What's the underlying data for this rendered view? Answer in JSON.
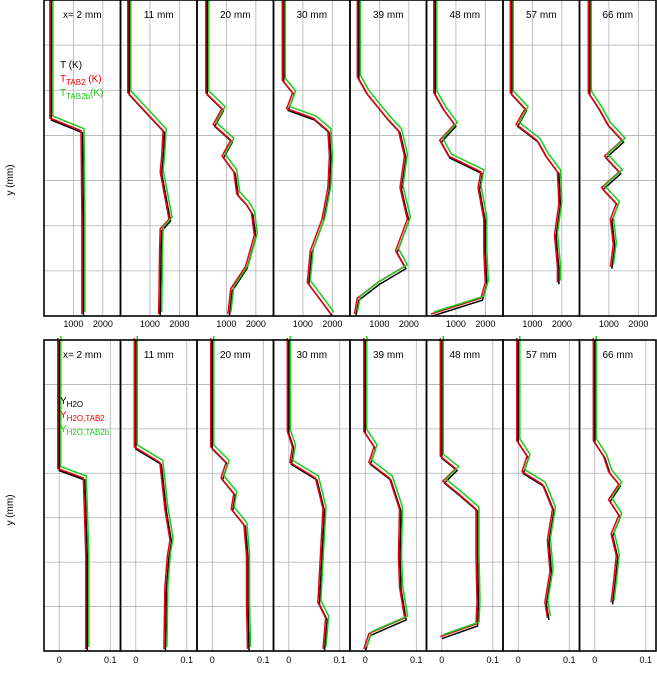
{
  "figure": {
    "ylabel": "y (mm)",
    "stations": [
      "x= 2 mm",
      "11 mm",
      "20 mm",
      "30 mm",
      "39 mm",
      "48 mm",
      "57 mm",
      "66 mm"
    ]
  },
  "chart_data": [
    {
      "type": "line",
      "title": "",
      "ylabel": "y (mm)",
      "xlabel": "",
      "xlim": [
        0,
        2600
      ],
      "xticks": [
        1000,
        2000
      ],
      "xtick_labels": [
        "1000",
        "2000"
      ],
      "grid": true,
      "legend": {
        "placement": "top-left (first panel)",
        "entries": [
          {
            "main": "T",
            "sub": "",
            "unit": " (K)",
            "color": "#000000"
          },
          {
            "main": "T",
            "sub": "TAB2",
            "unit": " (K)",
            "color": "#e8000b"
          },
          {
            "main": "T",
            "sub": "TAB2b",
            "unit": "(K)",
            "color": "#1ec81e"
          }
        ]
      },
      "series_names": [
        "T",
        "T TAB2",
        "T TAB2b"
      ],
      "series_colors": [
        "#000000",
        "#e8000b",
        "#1ec81e"
      ],
      "panels": [
        {
          "label": "x= 2 mm",
          "profile": [
            [
              0,
              250
            ],
            [
              0.38,
              250
            ],
            [
              0.42,
              1310
            ],
            [
              0.7,
              1340
            ],
            [
              1.0,
              1340
            ]
          ]
        },
        {
          "label": "11 mm",
          "profile": [
            [
              0,
              300
            ],
            [
              0.3,
              300
            ],
            [
              0.35,
              800
            ],
            [
              0.42,
              1500
            ],
            [
              0.5,
              1450
            ],
            [
              0.55,
              1400
            ],
            [
              0.7,
              1700
            ],
            [
              0.73,
              1400
            ],
            [
              0.8,
              1380
            ],
            [
              1.0,
              1350
            ]
          ]
        },
        {
          "label": "20 mm",
          "profile": [
            [
              0,
              350
            ],
            [
              0.3,
              350
            ],
            [
              0.35,
              900
            ],
            [
              0.4,
              600
            ],
            [
              0.45,
              1200
            ],
            [
              0.5,
              900
            ],
            [
              0.55,
              1300
            ],
            [
              0.62,
              1400
            ],
            [
              0.65,
              1700
            ],
            [
              0.68,
              1900
            ],
            [
              0.75,
              2000
            ],
            [
              0.85,
              1700
            ],
            [
              0.92,
              1200
            ],
            [
              1.0,
              1100
            ]
          ]
        },
        {
          "label": "30 mm",
          "profile": [
            [
              0,
              350
            ],
            [
              0.26,
              350
            ],
            [
              0.3,
              700
            ],
            [
              0.35,
              500
            ],
            [
              0.38,
              1400
            ],
            [
              0.42,
              1900
            ],
            [
              0.5,
              1950
            ],
            [
              0.6,
              1900
            ],
            [
              0.7,
              1700
            ],
            [
              0.8,
              1300
            ],
            [
              0.9,
              1200
            ],
            [
              0.95,
              1600
            ],
            [
              1.0,
              2000
            ]
          ]
        },
        {
          "label": "39 mm",
          "profile": [
            [
              0,
              300
            ],
            [
              0.25,
              300
            ],
            [
              0.3,
              600
            ],
            [
              0.38,
              1300
            ],
            [
              0.42,
              1700
            ],
            [
              0.5,
              1900
            ],
            [
              0.6,
              1750
            ],
            [
              0.7,
              2000
            ],
            [
              0.8,
              1600
            ],
            [
              0.85,
              1900
            ],
            [
              0.9,
              1000
            ],
            [
              0.95,
              300
            ],
            [
              1.0,
              200
            ]
          ]
        },
        {
          "label": "48 mm",
          "profile": [
            [
              0,
              300
            ],
            [
              0.3,
              300
            ],
            [
              0.35,
              600
            ],
            [
              0.4,
              1000
            ],
            [
              0.45,
              500
            ],
            [
              0.5,
              800
            ],
            [
              0.55,
              1900
            ],
            [
              0.6,
              1800
            ],
            [
              0.7,
              2000
            ],
            [
              0.8,
              2000
            ],
            [
              0.9,
              2050
            ],
            [
              0.95,
              1900
            ],
            [
              1.0,
              200
            ]
          ]
        },
        {
          "label": "57 mm",
          "profile": [
            [
              0,
              300
            ],
            [
              0.3,
              300
            ],
            [
              0.35,
              800
            ],
            [
              0.4,
              500
            ],
            [
              0.45,
              1200
            ],
            [
              0.5,
              1500
            ],
            [
              0.55,
              1900
            ],
            [
              0.65,
              1950
            ],
            [
              0.75,
              1800
            ],
            [
              0.85,
              1900
            ],
            [
              0.9,
              1900
            ]
          ]
        },
        {
          "label": "66 mm",
          "profile": [
            [
              0,
              350
            ],
            [
              0.3,
              350
            ],
            [
              0.35,
              700
            ],
            [
              0.4,
              1000
            ],
            [
              0.45,
              1500
            ],
            [
              0.5,
              900
            ],
            [
              0.55,
              1400
            ],
            [
              0.6,
              800
            ],
            [
              0.65,
              1300
            ],
            [
              0.7,
              1100
            ],
            [
              0.78,
              1200
            ],
            [
              0.85,
              1100
            ]
          ]
        }
      ]
    },
    {
      "type": "line",
      "title": "",
      "ylabel": "y (mm)",
      "xlabel": "",
      "xlim": [
        -0.03,
        0.12
      ],
      "xticks": [
        0,
        0.1
      ],
      "xtick_labels": [
        "0",
        "0.1"
      ],
      "grid": true,
      "legend": {
        "placement": "top-left (first panel)",
        "entries": [
          {
            "main": "Y",
            "sub": "H2O",
            "unit": "",
            "color": "#000000"
          },
          {
            "main": "Y",
            "sub": "H2O,TAB2",
            "unit": "",
            "color": "#e8000b"
          },
          {
            "main": "Y",
            "sub": "H2O,TAB2b",
            "unit": "",
            "color": "#1ec81e"
          }
        ]
      },
      "series_names": [
        "Y H2O",
        "Y H2O,TAB2",
        "Y H2O,TAB2b"
      ],
      "series_colors": [
        "#000000",
        "#e8000b",
        "#1ec81e"
      ],
      "panels": [
        {
          "label": "x= 2 mm",
          "profile": [
            [
              0,
              0
            ],
            [
              0.42,
              0
            ],
            [
              0.45,
              0.05
            ],
            [
              0.7,
              0.055
            ],
            [
              1.0,
              0.055
            ]
          ]
        },
        {
          "label": "11 mm",
          "profile": [
            [
              0,
              0
            ],
            [
              0.35,
              0
            ],
            [
              0.4,
              0.05
            ],
            [
              0.55,
              0.06
            ],
            [
              0.65,
              0.07
            ],
            [
              0.7,
              0.065
            ],
            [
              0.8,
              0.06
            ],
            [
              1.0,
              0.058
            ]
          ]
        },
        {
          "label": "20 mm",
          "profile": [
            [
              0,
              0
            ],
            [
              0.35,
              0
            ],
            [
              0.4,
              0.03
            ],
            [
              0.45,
              0.02
            ],
            [
              0.5,
              0.045
            ],
            [
              0.55,
              0.04
            ],
            [
              0.6,
              0.065
            ],
            [
              0.7,
              0.07
            ],
            [
              0.85,
              0.07
            ],
            [
              1.0,
              0.072
            ]
          ]
        },
        {
          "label": "30 mm",
          "profile": [
            [
              0,
              0
            ],
            [
              0.3,
              0
            ],
            [
              0.35,
              0.01
            ],
            [
              0.4,
              0.005
            ],
            [
              0.45,
              0.055
            ],
            [
              0.55,
              0.07
            ],
            [
              0.7,
              0.065
            ],
            [
              0.85,
              0.06
            ],
            [
              0.9,
              0.075
            ],
            [
              1.0,
              0.07
            ]
          ]
        },
        {
          "label": "39 mm",
          "profile": [
            [
              0,
              0
            ],
            [
              0.3,
              0
            ],
            [
              0.35,
              0.02
            ],
            [
              0.4,
              0.01
            ],
            [
              0.45,
              0.05
            ],
            [
              0.55,
              0.07
            ],
            [
              0.7,
              0.068
            ],
            [
              0.8,
              0.07
            ],
            [
              0.9,
              0.08
            ],
            [
              0.95,
              0.01
            ],
            [
              1.0,
              0.0
            ]
          ]
        },
        {
          "label": "48 mm",
          "profile": [
            [
              0,
              0
            ],
            [
              0.38,
              0
            ],
            [
              0.42,
              0.03
            ],
            [
              0.46,
              0.005
            ],
            [
              0.5,
              0.035
            ],
            [
              0.55,
              0.07
            ],
            [
              0.7,
              0.07
            ],
            [
              0.85,
              0.072
            ],
            [
              0.92,
              0.07
            ],
            [
              0.96,
              0.0
            ]
          ]
        },
        {
          "label": "57 mm",
          "profile": [
            [
              0,
              0
            ],
            [
              0.33,
              0
            ],
            [
              0.38,
              0.02
            ],
            [
              0.43,
              0.01
            ],
            [
              0.47,
              0.05
            ],
            [
              0.55,
              0.07
            ],
            [
              0.65,
              0.06
            ],
            [
              0.75,
              0.065
            ],
            [
              0.85,
              0.055
            ],
            [
              0.9,
              0.06
            ]
          ]
        },
        {
          "label": "66 mm",
          "profile": [
            [
              0,
              0
            ],
            [
              0.33,
              0
            ],
            [
              0.38,
              0.02
            ],
            [
              0.43,
              0.03
            ],
            [
              0.47,
              0.05
            ],
            [
              0.52,
              0.03
            ],
            [
              0.57,
              0.05
            ],
            [
              0.63,
              0.035
            ],
            [
              0.7,
              0.045
            ],
            [
              0.78,
              0.04
            ],
            [
              0.85,
              0.035
            ]
          ]
        }
      ]
    }
  ]
}
